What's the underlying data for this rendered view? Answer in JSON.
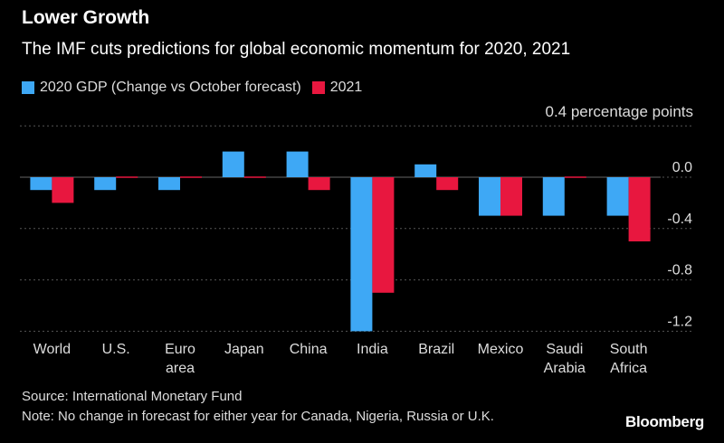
{
  "title": "Lower Growth",
  "subtitle": "The IMF cuts predictions for global economic momentum for 2020, 2021",
  "unit_label": "0.4 percentage points",
  "source": "Source: International Monetary Fund",
  "note": "Note: No change in forecast for either year for Canada, Nigeria, Russia or U.K.",
  "brand": "Bloomberg",
  "colors": {
    "series_2020": "#3ea8f5",
    "series_2021": "#e8173f",
    "background": "#000000",
    "grid": "#555555"
  },
  "chart_data": {
    "type": "bar",
    "categories": [
      [
        "World"
      ],
      [
        "U.S."
      ],
      [
        "Euro",
        "area"
      ],
      [
        "Japan"
      ],
      [
        "China"
      ],
      [
        "India"
      ],
      [
        "Brazil"
      ],
      [
        "Mexico"
      ],
      [
        "Saudi",
        "Arabia"
      ],
      [
        "South",
        "Africa"
      ]
    ],
    "series": [
      {
        "name": "2020 GDP (Change vs October forecast)",
        "color": "#3ea8f5",
        "values": [
          -0.1,
          -0.1,
          -0.1,
          0.2,
          0.2,
          -1.2,
          0.1,
          -0.3,
          -0.3,
          -0.3
        ]
      },
      {
        "name": "2021",
        "color": "#e8173f",
        "values": [
          -0.2,
          0.0,
          0.0,
          0.0,
          -0.1,
          -0.9,
          -0.1,
          -0.3,
          0.0,
          -0.5
        ]
      }
    ],
    "ylim": [
      -1.3,
      0.4
    ],
    "yticks": [
      {
        "value": 0.4,
        "label": ""
      },
      {
        "value": 0.0,
        "label": "0.0"
      },
      {
        "value": -0.4,
        "label": "-0.4"
      },
      {
        "value": -0.8,
        "label": "-0.8"
      },
      {
        "value": -1.2,
        "label": "-1.2"
      }
    ],
    "grid": true,
    "legend_position": "top-left"
  }
}
